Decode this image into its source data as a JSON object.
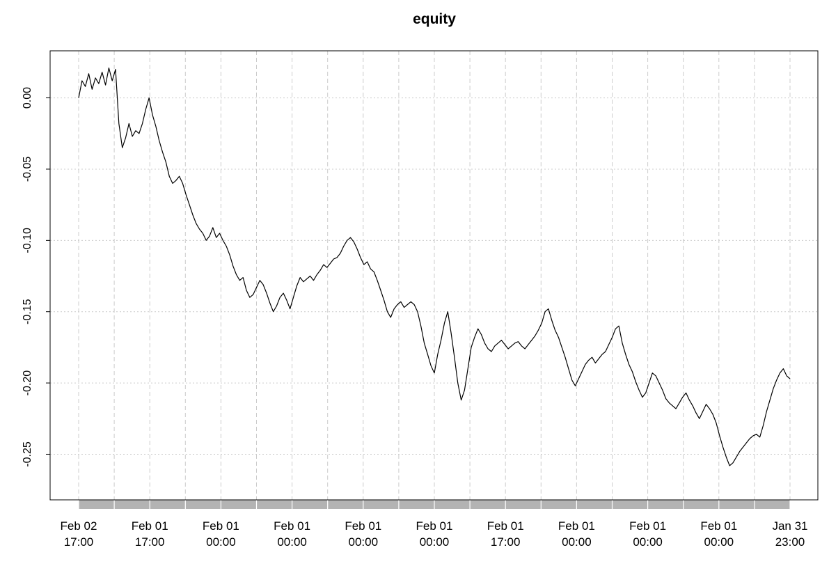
{
  "chart_data": {
    "type": "line",
    "title": "equity",
    "xlabel": "",
    "ylabel": "",
    "ylim": [
      -0.282,
      0.033
    ],
    "y_ticks": [
      0.0,
      -0.05,
      -0.1,
      -0.15,
      -0.2,
      -0.25
    ],
    "y_tick_labels": [
      "0.00",
      "-0.05",
      "-0.10",
      "-0.15",
      "-0.20",
      "-0.25"
    ],
    "x_tick_labels": [
      [
        "Feb 02",
        "17:00"
      ],
      [
        "Feb 01",
        "17:00"
      ],
      [
        "Feb 01",
        "00:00"
      ],
      [
        "Feb 01",
        "00:00"
      ],
      [
        "Feb 01",
        "00:00"
      ],
      [
        "Feb 01",
        "00:00"
      ],
      [
        "Feb 01",
        "17:00"
      ],
      [
        "Feb 01",
        "00:00"
      ],
      [
        "Feb 01",
        "00:00"
      ],
      [
        "Feb 01",
        "00:00"
      ],
      [
        "Jan 31",
        "23:00"
      ]
    ],
    "x_grid_count": 21,
    "grid": true,
    "colors": {
      "line": "#000000",
      "grid": "#cccccc",
      "axis_band": "#b3b3b3"
    },
    "series": [
      {
        "values": [
          0.0,
          0.012,
          0.008,
          0.017,
          0.006,
          0.014,
          0.01,
          0.018,
          0.009,
          0.021,
          0.012,
          0.02,
          -0.018,
          -0.035,
          -0.028,
          -0.018,
          -0.027,
          -0.023,
          -0.025,
          -0.018,
          -0.008,
          0.0,
          -0.012,
          -0.02,
          -0.03,
          -0.038,
          -0.045,
          -0.055,
          -0.06,
          -0.058,
          -0.055,
          -0.06,
          -0.068,
          -0.075,
          -0.082,
          -0.088,
          -0.092,
          -0.095,
          -0.1,
          -0.097,
          -0.091,
          -0.098,
          -0.095,
          -0.1,
          -0.104,
          -0.11,
          -0.118,
          -0.124,
          -0.128,
          -0.126,
          -0.135,
          -0.14,
          -0.138,
          -0.133,
          -0.128,
          -0.131,
          -0.137,
          -0.144,
          -0.15,
          -0.146,
          -0.14,
          -0.137,
          -0.142,
          -0.148,
          -0.14,
          -0.132,
          -0.126,
          -0.129,
          -0.127,
          -0.125,
          -0.128,
          -0.124,
          -0.121,
          -0.117,
          -0.119,
          -0.116,
          -0.113,
          -0.112,
          -0.109,
          -0.104,
          -0.1,
          -0.098,
          -0.101,
          -0.106,
          -0.112,
          -0.117,
          -0.115,
          -0.12,
          -0.122,
          -0.128,
          -0.135,
          -0.142,
          -0.15,
          -0.154,
          -0.148,
          -0.145,
          -0.143,
          -0.147,
          -0.145,
          -0.143,
          -0.145,
          -0.15,
          -0.16,
          -0.172,
          -0.18,
          -0.188,
          -0.193,
          -0.18,
          -0.17,
          -0.158,
          -0.15,
          -0.165,
          -0.182,
          -0.2,
          -0.212,
          -0.205,
          -0.19,
          -0.175,
          -0.168,
          -0.162,
          -0.166,
          -0.172,
          -0.176,
          -0.178,
          -0.174,
          -0.172,
          -0.17,
          -0.173,
          -0.176,
          -0.174,
          -0.172,
          -0.171,
          -0.174,
          -0.176,
          -0.173,
          -0.17,
          -0.167,
          -0.163,
          -0.158,
          -0.15,
          -0.148,
          -0.156,
          -0.163,
          -0.168,
          -0.175,
          -0.182,
          -0.19,
          -0.198,
          -0.202,
          -0.197,
          -0.192,
          -0.187,
          -0.184,
          -0.182,
          -0.186,
          -0.183,
          -0.18,
          -0.178,
          -0.173,
          -0.168,
          -0.162,
          -0.16,
          -0.172,
          -0.18,
          -0.187,
          -0.192,
          -0.199,
          -0.205,
          -0.21,
          -0.207,
          -0.2,
          -0.193,
          -0.195,
          -0.2,
          -0.205,
          -0.211,
          -0.214,
          -0.216,
          -0.218,
          -0.214,
          -0.21,
          -0.207,
          -0.212,
          -0.216,
          -0.221,
          -0.225,
          -0.22,
          -0.215,
          -0.218,
          -0.222,
          -0.228,
          -0.237,
          -0.245,
          -0.252,
          -0.258,
          -0.256,
          -0.252,
          -0.248,
          -0.245,
          -0.242,
          -0.239,
          -0.237,
          -0.236,
          -0.238,
          -0.23,
          -0.22,
          -0.212,
          -0.204,
          -0.198,
          -0.193,
          -0.19,
          -0.195,
          -0.197
        ]
      }
    ]
  }
}
